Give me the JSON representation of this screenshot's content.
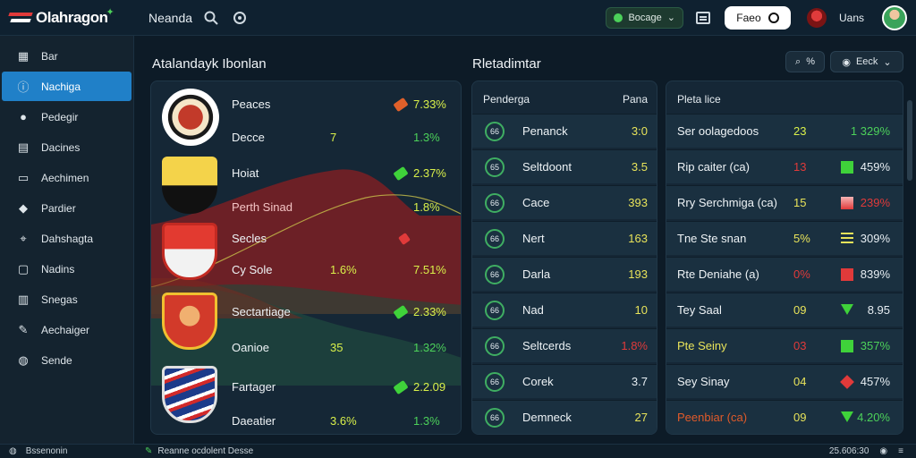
{
  "app": {
    "logo_text": "Olahragon",
    "nav_title": "Neanda"
  },
  "topbar": {
    "status_label": "Bocage",
    "button_label": "Faeo",
    "user_name": "Uans"
  },
  "sidebar": {
    "items": [
      {
        "label": "Bar",
        "icon": "grid-icon"
      },
      {
        "label": "Nachiga",
        "icon": "info-icon",
        "active": true
      },
      {
        "label": "Pedegir",
        "icon": "user-icon"
      },
      {
        "label": "Dacines",
        "icon": "folder-icon"
      },
      {
        "label": "Aechimen",
        "icon": "chat-icon"
      },
      {
        "label": "Pardier",
        "icon": "tag-icon"
      },
      {
        "label": "Dahshagta",
        "icon": "location-icon"
      },
      {
        "label": "Nadins",
        "icon": "monitor-icon"
      },
      {
        "label": "Snegas",
        "icon": "layout-icon"
      },
      {
        "label": "Aechaiger",
        "icon": "pen-icon"
      },
      {
        "label": "Sende",
        "icon": "globe-icon"
      }
    ]
  },
  "left_section": {
    "title": "Atalandayk Ibonlan",
    "rows": [
      {
        "label": "Peaces",
        "mid": "",
        "val": "7.33%",
        "ind": "#e0602a"
      },
      {
        "label": "Decce",
        "mid": "7",
        "val": "1.3%",
        "ind": ""
      },
      {
        "label": "Hoiat",
        "mid": "",
        "val": "2.37%",
        "ind": "#3fd23a"
      },
      {
        "label": "Perth Sinad",
        "mid": "",
        "val": "1.8%",
        "ind": ""
      },
      {
        "label": "Secles",
        "mid": "",
        "val": "",
        "ind": "#e03a3a"
      },
      {
        "label": "Cy Sole",
        "mid": "1.6%",
        "val": "7.51%",
        "ind": ""
      },
      {
        "label": "Sectartiage",
        "mid": "",
        "val": "2.33%",
        "ind": "#3fd23a"
      },
      {
        "label": "Oanioe",
        "mid": "35",
        "val": "1.32%",
        "ind": ""
      },
      {
        "label": "Fartager",
        "mid": "",
        "val": "2.2.09",
        "ind": "#3fd23a"
      },
      {
        "label": "Daeatier",
        "mid": "3.6%",
        "val": "1.3%",
        "ind": ""
      }
    ]
  },
  "middle_section": {
    "title": "Rletadimtar",
    "col_left": "Penderga",
    "col_right": "Pana",
    "rows": [
      {
        "num": "66",
        "name": "Penanck",
        "score": "3:0",
        "color": "#e8e35a"
      },
      {
        "num": "65",
        "name": "Seltdoont",
        "score": "3.5",
        "color": "#e8e35a"
      },
      {
        "num": "66",
        "name": "Cace",
        "score": "393",
        "color": "#e8e35a"
      },
      {
        "num": "66",
        "name": "Nert",
        "score": "163",
        "color": "#e8e35a"
      },
      {
        "num": "66",
        "name": "Darla",
        "score": "193",
        "color": "#e8e35a"
      },
      {
        "num": "66",
        "name": "Nad",
        "score": "10",
        "color": "#e8e35a"
      },
      {
        "num": "66",
        "name": "Seltcerds",
        "score": "1.8%",
        "color": "#e03a3a"
      },
      {
        "num": "66",
        "name": "Corek",
        "score": "3.7",
        "color": "#e6edf2"
      },
      {
        "num": "66",
        "name": "Demneck",
        "score": "27",
        "color": "#e8e35a"
      }
    ]
  },
  "right_section": {
    "search_label": "%",
    "filter_label": "Eeck",
    "header": "Pleta lice",
    "rows": [
      {
        "name": "Ser oolagedoos",
        "n": "23",
        "n_color": "#d9f04a",
        "pc": "1 329%",
        "pc_color": "#4cd15a",
        "icon": ""
      },
      {
        "name": "Rip caiter (ca)",
        "n": "13",
        "n_color": "#e03a3a",
        "pc": "459%",
        "pc_color": "#e6edf2",
        "icon": "green-square"
      },
      {
        "name": "Rry Serchmiga (ca)",
        "n": "15",
        "n_color": "#e8e35a",
        "pc": "239%",
        "pc_color": "#e03a3a",
        "icon": "red-gradient"
      },
      {
        "name": "Tne Ste snan",
        "n": "5%",
        "n_color": "#e8e35a",
        "pc": "309%",
        "pc_color": "#e6edf2",
        "icon": "bars"
      },
      {
        "name": "Rte Deniahe (a)",
        "n": "0%",
        "n_color": "#e03a3a",
        "pc": "839%",
        "pc_color": "#e6edf2",
        "icon": "red-square"
      },
      {
        "name": "Tey Saal",
        "n": "09",
        "n_color": "#e8e35a",
        "pc": "8.95",
        "pc_color": "#e6edf2",
        "icon": "green-down"
      },
      {
        "name": "Pte Seiny",
        "n": "03",
        "n_color": "#e03a3a",
        "pc": "357%",
        "pc_color": "#4cd15a",
        "icon": "green-square"
      },
      {
        "name": "Sey Sinay",
        "n": "04",
        "n_color": "#e8e35a",
        "pc": "457%",
        "pc_color": "#e6edf2",
        "icon": "red-diamond"
      },
      {
        "name": "Peenbiar (ca)",
        "n": "09",
        "n_color": "#e8e35a",
        "pc": "4.20%",
        "pc_color": "#4cd15a",
        "icon": "green-down"
      }
    ]
  },
  "bottombar": {
    "left_text": "Bssenonin",
    "mid_text": "Reanne ocdolent Desse",
    "right_text": "25.606:30"
  }
}
